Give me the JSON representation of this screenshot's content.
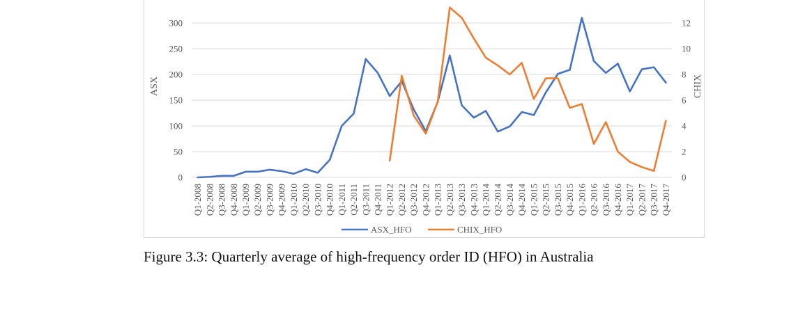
{
  "caption": "Figure 3.3: Quarterly average of high-frequency order ID (HFO) in Australia",
  "chart_data": {
    "type": "line",
    "title": "",
    "xlabel": "",
    "ylabel": "ASX",
    "y2label": "CHIX",
    "ylim": [
      0,
      300
    ],
    "y2lim": [
      0,
      12
    ],
    "y_ticks": [
      0,
      50,
      100,
      150,
      200,
      250,
      300
    ],
    "y2_ticks": [
      0,
      2,
      4,
      6,
      8,
      10,
      12
    ],
    "grid": true,
    "legend": "bottom",
    "categories": [
      "Q1-2008",
      "Q2-2008",
      "Q3-2008",
      "Q4-2008",
      "Q1-2009",
      "Q2-2009",
      "Q3-2009",
      "Q4-2009",
      "Q1-2010",
      "Q2-2010",
      "Q3-2010",
      "Q4-2010",
      "Q1-2011",
      "Q2-2011",
      "Q3-2011",
      "Q4-2011",
      "Q1-2012",
      "Q2-2012",
      "Q3-2012",
      "Q4-2012",
      "Q1-2013",
      "Q2-2013",
      "Q3-2013",
      "Q4-2013",
      "Q1-2014",
      "Q2-2014",
      "Q3-2014",
      "Q4-2014",
      "Q1-2015",
      "Q2-2015",
      "Q3-2015",
      "Q4-2015",
      "Q1-2016",
      "Q2-2016",
      "Q3-2016",
      "Q4-2016",
      "Q1-2017",
      "Q2-2017",
      "Q3-2017",
      "Q4-2017"
    ],
    "series": [
      {
        "name": "ASX_HFO",
        "axis": "left",
        "color": "#4472c4",
        "values": [
          0,
          1,
          3,
          3,
          11,
          11,
          15,
          12,
          7,
          16,
          9,
          34,
          100,
          124,
          230,
          203,
          158,
          187,
          132,
          90,
          147,
          237,
          140,
          116,
          129,
          89,
          99,
          127,
          121,
          165,
          201,
          209,
          310,
          226,
          203,
          221,
          167,
          210,
          214,
          184
        ]
      },
      {
        "name": "CHIX_HFO",
        "axis": "right",
        "color": "#ed7d31",
        "values": [
          null,
          null,
          null,
          null,
          null,
          null,
          null,
          null,
          null,
          null,
          null,
          null,
          null,
          null,
          null,
          null,
          1.3,
          7.9,
          4.8,
          3.4,
          5.9,
          13.2,
          12.4,
          10.8,
          9.3,
          8.7,
          8.0,
          8.9,
          6.1,
          7.7,
          7.7,
          5.4,
          5.7,
          2.6,
          4.3,
          2.0,
          1.2,
          0.8,
          0.5,
          4.4
        ]
      }
    ]
  }
}
